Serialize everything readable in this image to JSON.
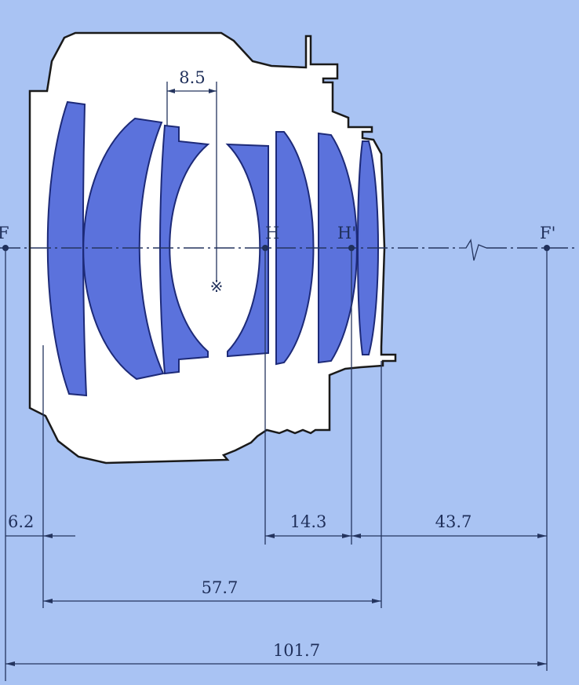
{
  "colors": {
    "background": "#a9c3f3",
    "lens_glass": "#5b72dc",
    "lens_edge": "#1d2a78",
    "barrel": "#ffffff",
    "line": "#24345e"
  },
  "points": {
    "front_focal": "F",
    "principal_front": "H",
    "principal_rear": "H'",
    "rear_focal": "F'",
    "aperture_mark": "※"
  },
  "dimensions": {
    "stop_offset": "8.5",
    "front_focal_distance": "6.2",
    "principal_separation": "14.3",
    "back_focal_distance": "43.7",
    "lens_length": "57.7",
    "total_length": "101.7"
  }
}
